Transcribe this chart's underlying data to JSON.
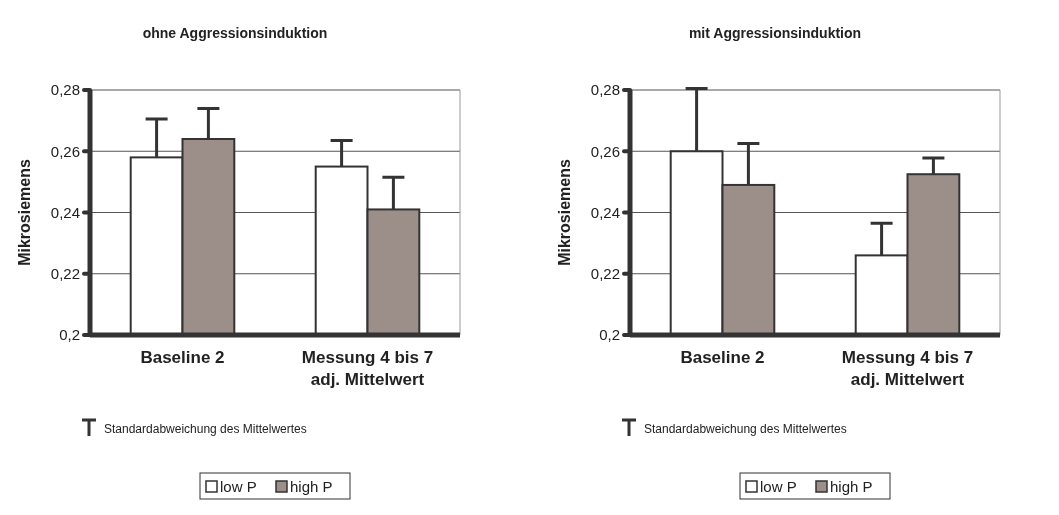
{
  "chart_data": [
    {
      "type": "bar",
      "title": "ohne Aggressionsinduktion",
      "ylabel": "Mikrosiemens",
      "categories": [
        "Baseline 2",
        "Messung 4 bis 7 adj. Mittelwert"
      ],
      "series": [
        {
          "name": "low P",
          "color": "#ffffff",
          "values": [
            0.258,
            0.255
          ],
          "errors": [
            [
              0.258,
              0.2705
            ],
            [
              0.255,
              0.2635
            ]
          ]
        },
        {
          "name": "high P",
          "color": "#9c8f8a",
          "values": [
            0.264,
            0.241
          ],
          "errors": [
            [
              0.264,
              0.274
            ],
            [
              0.241,
              0.2515
            ]
          ]
        }
      ],
      "ylim": [
        0.2,
        0.28
      ],
      "yticks": [
        {
          "value": 0.2,
          "label": "0,2"
        },
        {
          "value": 0.22,
          "label": "0,22"
        },
        {
          "value": 0.24,
          "label": "0,24"
        },
        {
          "value": 0.26,
          "label": "0,26"
        },
        {
          "value": 0.28,
          "label": "0,28"
        }
      ],
      "grid": "y",
      "legend": "bottom",
      "annotations": [
        "Standardabweichung des Mittelwertes"
      ]
    },
    {
      "type": "bar",
      "title": "mit Aggressionsinduktion",
      "ylabel": "Mikrosiemens",
      "categories": [
        "Baseline 2",
        "Messung 4 bis 7 adj. Mittelwert"
      ],
      "series": [
        {
          "name": "low P",
          "color": "#ffffff",
          "values": [
            0.26,
            0.226
          ],
          "errors": [
            [
              0.26,
              0.2805
            ],
            [
              0.226,
              0.2365
            ]
          ]
        },
        {
          "name": "high P",
          "color": "#9c8f8a",
          "values": [
            0.249,
            0.2525
          ],
          "errors": [
            [
              0.249,
              0.2625
            ],
            [
              0.2525,
              0.2578
            ]
          ]
        }
      ],
      "ylim": [
        0.2,
        0.28
      ],
      "yticks": [
        {
          "value": 0.2,
          "label": "0,2"
        },
        {
          "value": 0.22,
          "label": "0,22"
        },
        {
          "value": 0.24,
          "label": "0,24"
        },
        {
          "value": 0.26,
          "label": "0,26"
        },
        {
          "value": 0.28,
          "label": "0,28"
        }
      ],
      "grid": "y",
      "legend": "bottom",
      "annotations": [
        "Standardabweichung des Mittelwertes"
      ]
    }
  ]
}
